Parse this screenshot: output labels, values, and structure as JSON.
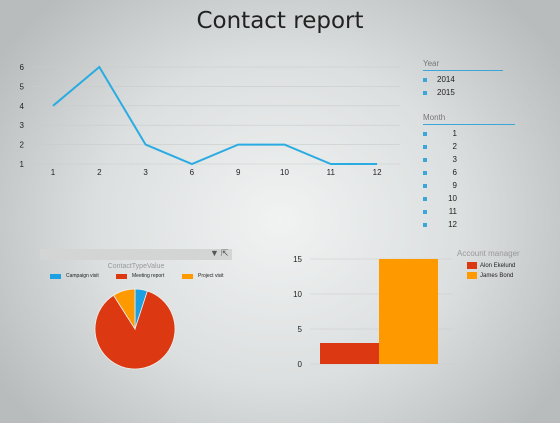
{
  "report": {
    "title": "Contact report"
  },
  "line_chart": {
    "type": "line",
    "x": [
      "1",
      "2",
      "3",
      "6",
      "9",
      "10",
      "11",
      "12"
    ],
    "values": [
      4,
      6,
      2,
      1,
      2,
      2,
      1,
      1
    ],
    "y_ticks": [
      "1",
      "2",
      "3",
      "4",
      "5",
      "6"
    ],
    "ylim": [
      1,
      6
    ],
    "color": "#2aabe2",
    "grid": true
  },
  "year_slicer": {
    "title": "Year",
    "items": [
      "2014",
      "2015"
    ]
  },
  "month_slicer": {
    "title": "Month",
    "items": [
      "1",
      "2",
      "3",
      "6",
      "9",
      "10",
      "11",
      "12"
    ]
  },
  "pie_chart": {
    "type": "pie",
    "legend_title": "ContactTypeValue",
    "slices": [
      {
        "label": "Campaign visit",
        "value": 5,
        "color": "#1ba1e2"
      },
      {
        "label": "Meeting report",
        "value": 86,
        "color": "#dc3912"
      },
      {
        "label": "Project visit",
        "value": 9,
        "color": "#ff9900"
      }
    ],
    "toolbar": {
      "filter_icon": "filter-icon",
      "focus_icon": "focus-mode-icon"
    }
  },
  "bar_chart": {
    "type": "bar",
    "legend_title": "Account manager",
    "series": [
      {
        "name": "Alon Ekelund",
        "value": 3,
        "color": "#dc3912"
      },
      {
        "name": "James Bond",
        "value": 15,
        "color": "#ff9900"
      }
    ],
    "y_ticks": [
      "0",
      "5",
      "10",
      "15"
    ],
    "ylim": [
      0,
      15
    ]
  },
  "chart_data": [
    {
      "type": "line",
      "x": [
        "1",
        "2",
        "3",
        "6",
        "9",
        "10",
        "11",
        "12"
      ],
      "values": [
        4,
        6,
        2,
        1,
        2,
        2,
        1,
        1
      ],
      "ylim": [
        1,
        6
      ]
    },
    {
      "type": "pie",
      "title": "ContactTypeValue",
      "categories": [
        "Campaign visit",
        "Meeting report",
        "Project visit"
      ],
      "values": [
        5,
        86,
        9
      ]
    },
    {
      "type": "bar",
      "title": "Account manager",
      "series": [
        {
          "name": "Alon Ekelund",
          "values": [
            3
          ]
        },
        {
          "name": "James Bond",
          "values": [
            15
          ]
        }
      ],
      "ylim": [
        0,
        15
      ]
    }
  ]
}
